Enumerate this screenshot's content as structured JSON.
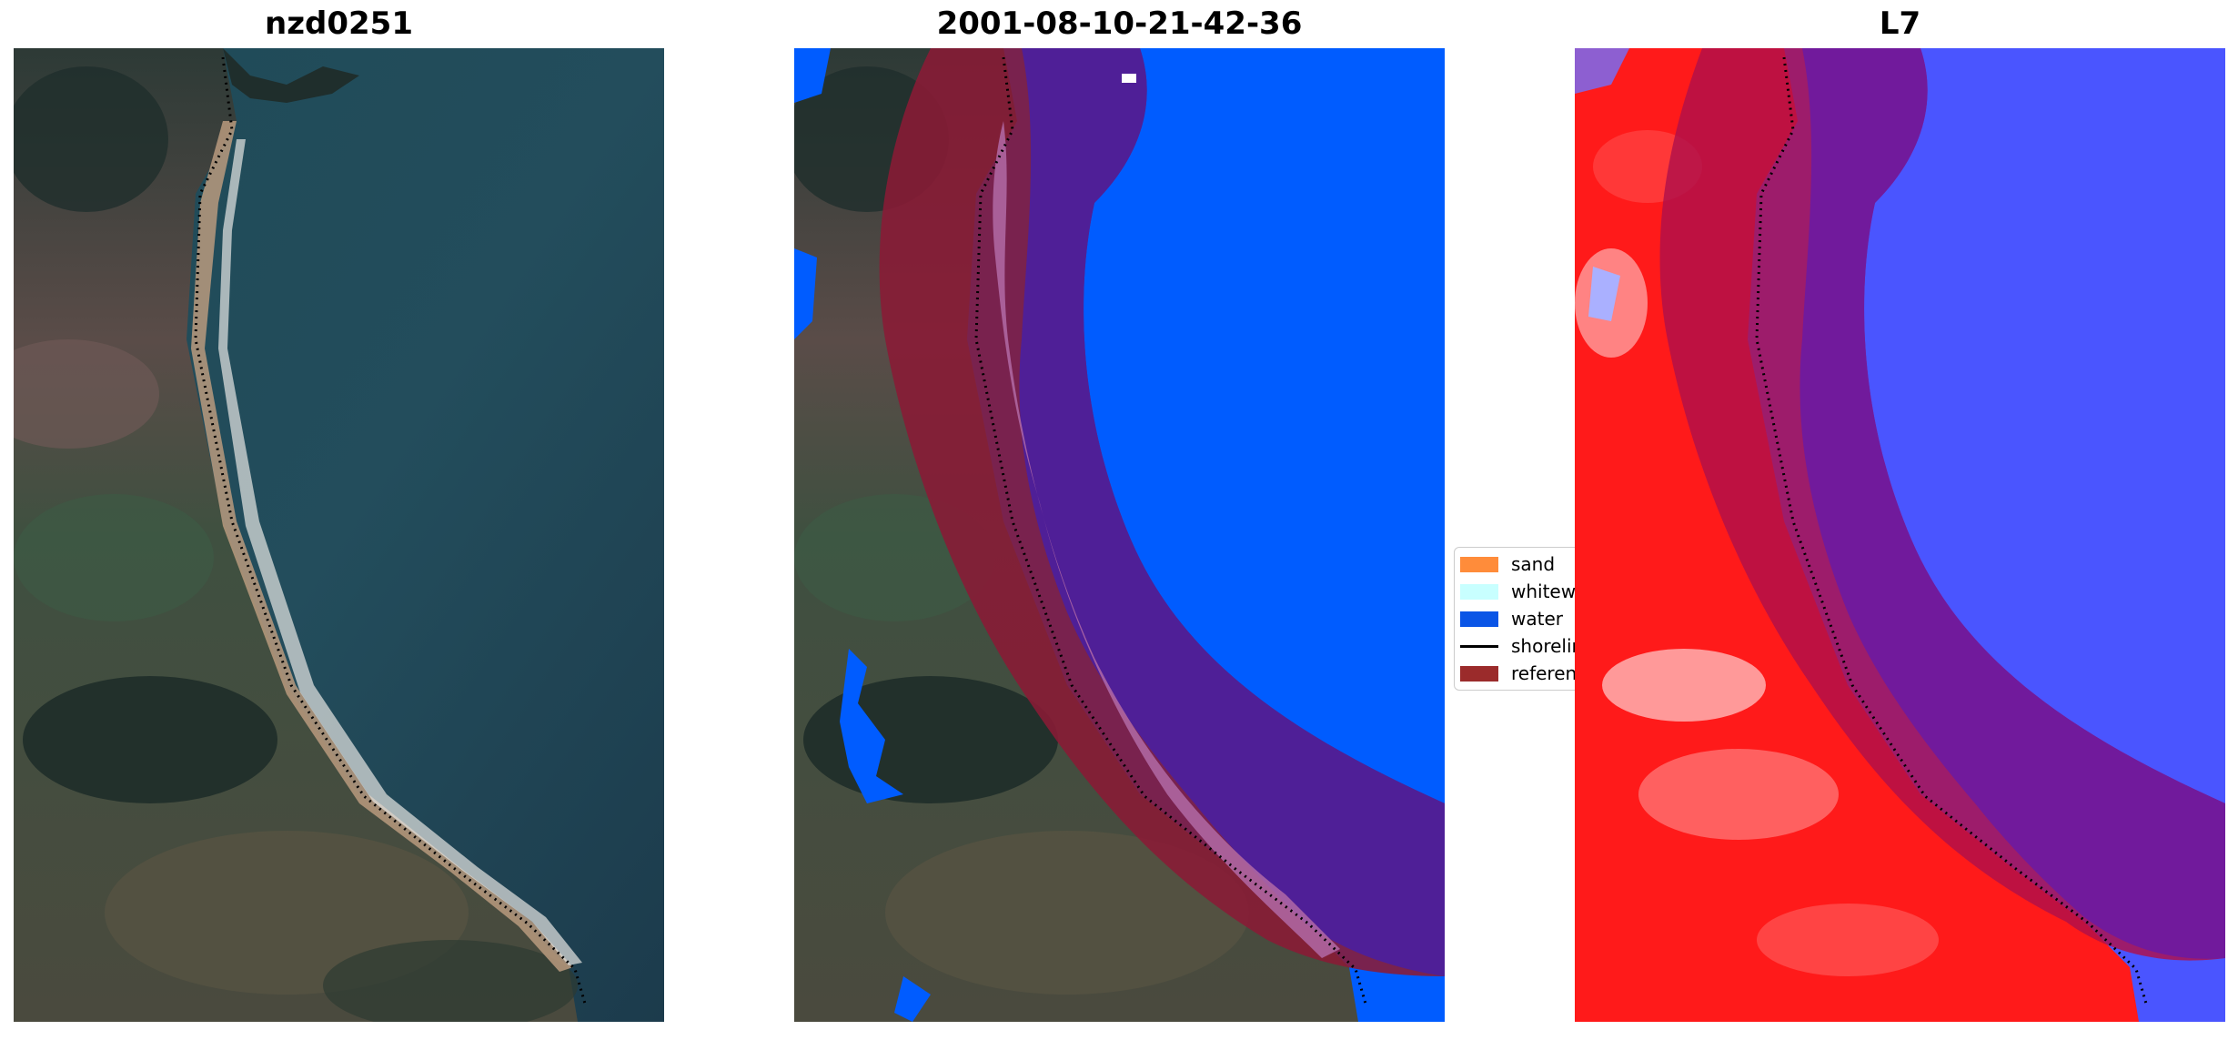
{
  "panels": [
    {
      "title": "nzd0251"
    },
    {
      "title": "2001-08-10-21-42-36"
    },
    {
      "title": "L7"
    }
  ],
  "legend": {
    "items": [
      {
        "label": "sand",
        "color": "#ff8c3a",
        "kind": "patch"
      },
      {
        "label": "whitewater",
        "color": "#c8ffff",
        "kind": "patch"
      },
      {
        "label": "water",
        "color": "#0a55e6",
        "kind": "patch"
      },
      {
        "label": "shoreline",
        "color": "#000000",
        "kind": "line"
      },
      {
        "label": "reference",
        "color": "#9b2b2b",
        "kind": "patch"
      }
    ]
  },
  "colors": {
    "reference_buffer": "#8a1a35",
    "water_class": "#005cff",
    "land_index": "#ff1a1a",
    "water_index": "#4a55ff"
  }
}
